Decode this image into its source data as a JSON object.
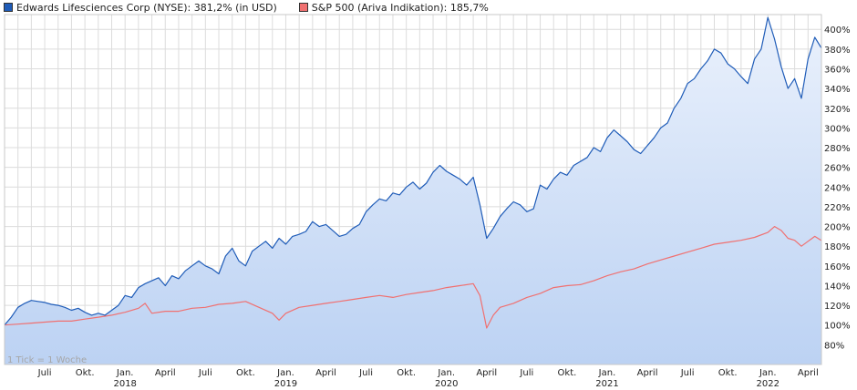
{
  "legend": {
    "series1": "Edwards Lifesciences Corp (NYSE): 381,2% (in USD)",
    "series2": "S&P 500 (Ariva Indikation): 185,7%"
  },
  "note": "1 Tick = 1 Woche",
  "colors": {
    "series1": "#1f5cb8",
    "series2": "#f07070",
    "fill_top": "#eaf1fc",
    "fill_bottom": "#bcd2f3",
    "grid": "#dcdcdc"
  },
  "chart_data": {
    "type": "line",
    "x_start": "2017-04",
    "x_end": "2022-04",
    "ylim": [
      60,
      415
    ],
    "yticks": [
      80,
      100,
      120,
      140,
      160,
      180,
      200,
      220,
      240,
      260,
      280,
      300,
      320,
      340,
      360,
      380,
      400
    ],
    "ytick_labels": [
      "80%",
      "100%",
      "120%",
      "140%",
      "160%",
      "180%",
      "200%",
      "220%",
      "240%",
      "260%",
      "280%",
      "300%",
      "320%",
      "340%",
      "360%",
      "380%",
      "400%"
    ],
    "xticks": [
      {
        "label": "Juli",
        "year": "",
        "month": 3
      },
      {
        "label": "Okt.",
        "year": "",
        "month": 6
      },
      {
        "label": "Jan.",
        "year": "2018",
        "month": 9
      },
      {
        "label": "April",
        "year": "",
        "month": 12
      },
      {
        "label": "Juli",
        "year": "",
        "month": 15
      },
      {
        "label": "Okt.",
        "year": "",
        "month": 18
      },
      {
        "label": "Jan.",
        "year": "2019",
        "month": 21
      },
      {
        "label": "April",
        "year": "",
        "month": 24
      },
      {
        "label": "Juli",
        "year": "",
        "month": 27
      },
      {
        "label": "Okt.",
        "year": "",
        "month": 30
      },
      {
        "label": "Jan.",
        "year": "2020",
        "month": 33
      },
      {
        "label": "April",
        "year": "",
        "month": 36
      },
      {
        "label": "Juli",
        "year": "",
        "month": 39
      },
      {
        "label": "Okt.",
        "year": "",
        "month": 42
      },
      {
        "label": "Jan.",
        "year": "2021",
        "month": 45
      },
      {
        "label": "April",
        "year": "",
        "month": 48
      },
      {
        "label": "Juli",
        "year": "",
        "month": 51
      },
      {
        "label": "Okt.",
        "year": "",
        "month": 54
      },
      {
        "label": "Jan.",
        "year": "2022",
        "month": 57
      },
      {
        "label": "April",
        "year": "",
        "month": 60
      }
    ],
    "series": [
      {
        "name": "Edwards Lifesciences Corp (NYSE): 381,2% (in USD)",
        "color": "#1f5cb8",
        "points": [
          [
            0,
            100
          ],
          [
            0.5,
            108
          ],
          [
            1,
            118
          ],
          [
            1.5,
            122
          ],
          [
            2,
            125
          ],
          [
            2.5,
            124
          ],
          [
            3,
            123
          ],
          [
            3.5,
            121
          ],
          [
            4,
            120
          ],
          [
            4.5,
            118
          ],
          [
            5,
            115
          ],
          [
            5.5,
            117
          ],
          [
            6,
            113
          ],
          [
            6.5,
            110
          ],
          [
            7,
            112
          ],
          [
            7.5,
            110
          ],
          [
            8,
            115
          ],
          [
            8.5,
            120
          ],
          [
            9,
            130
          ],
          [
            9.5,
            128
          ],
          [
            10,
            138
          ],
          [
            10.5,
            142
          ],
          [
            11,
            145
          ],
          [
            11.5,
            148
          ],
          [
            12,
            140
          ],
          [
            12.5,
            150
          ],
          [
            13,
            147
          ],
          [
            13.5,
            155
          ],
          [
            14,
            160
          ],
          [
            14.5,
            165
          ],
          [
            15,
            160
          ],
          [
            15.5,
            157
          ],
          [
            16,
            152
          ],
          [
            16.5,
            170
          ],
          [
            17,
            178
          ],
          [
            17.5,
            165
          ],
          [
            18,
            160
          ],
          [
            18.5,
            175
          ],
          [
            19,
            180
          ],
          [
            19.5,
            185
          ],
          [
            20,
            178
          ],
          [
            20.5,
            188
          ],
          [
            21,
            182
          ],
          [
            21.5,
            190
          ],
          [
            22,
            192
          ],
          [
            22.5,
            195
          ],
          [
            23,
            205
          ],
          [
            23.5,
            200
          ],
          [
            24,
            202
          ],
          [
            24.5,
            196
          ],
          [
            25,
            190
          ],
          [
            25.5,
            192
          ],
          [
            26,
            198
          ],
          [
            26.5,
            202
          ],
          [
            27,
            215
          ],
          [
            27.5,
            222
          ],
          [
            28,
            228
          ],
          [
            28.5,
            226
          ],
          [
            29,
            234
          ],
          [
            29.5,
            232
          ],
          [
            30,
            240
          ],
          [
            30.5,
            245
          ],
          [
            31,
            238
          ],
          [
            31.5,
            244
          ],
          [
            32,
            255
          ],
          [
            32.5,
            262
          ],
          [
            33,
            256
          ],
          [
            33.5,
            252
          ],
          [
            34,
            248
          ],
          [
            34.5,
            242
          ],
          [
            35,
            250
          ],
          [
            35.5,
            222
          ],
          [
            36,
            188
          ],
          [
            36.5,
            198
          ],
          [
            37,
            210
          ],
          [
            37.5,
            218
          ],
          [
            38,
            225
          ],
          [
            38.5,
            222
          ],
          [
            39,
            215
          ],
          [
            39.5,
            218
          ],
          [
            40,
            242
          ],
          [
            40.5,
            238
          ],
          [
            41,
            248
          ],
          [
            41.5,
            255
          ],
          [
            42,
            252
          ],
          [
            42.5,
            262
          ],
          [
            43,
            266
          ],
          [
            43.5,
            270
          ],
          [
            44,
            280
          ],
          [
            44.5,
            276
          ],
          [
            45,
            290
          ],
          [
            45.5,
            298
          ],
          [
            46,
            292
          ],
          [
            46.5,
            286
          ],
          [
            47,
            278
          ],
          [
            47.5,
            274
          ],
          [
            48,
            282
          ],
          [
            48.5,
            290
          ],
          [
            49,
            300
          ],
          [
            49.5,
            305
          ],
          [
            50,
            320
          ],
          [
            50.5,
            330
          ],
          [
            51,
            345
          ],
          [
            51.5,
            350
          ],
          [
            52,
            360
          ],
          [
            52.5,
            368
          ],
          [
            53,
            380
          ],
          [
            53.5,
            376
          ],
          [
            54,
            365
          ],
          [
            54.5,
            360
          ],
          [
            55,
            352
          ],
          [
            55.5,
            345
          ],
          [
            56,
            370
          ],
          [
            56.5,
            380
          ],
          [
            57,
            412
          ],
          [
            57.5,
            390
          ],
          [
            58,
            362
          ],
          [
            58.5,
            340
          ],
          [
            59,
            350
          ],
          [
            59.5,
            330
          ],
          [
            60,
            370
          ],
          [
            60.5,
            392
          ],
          [
            61,
            381
          ]
        ]
      },
      {
        "name": "S&P 500 (Ariva Indikation): 185,7%",
        "color": "#f07070",
        "points": [
          [
            0,
            100
          ],
          [
            1,
            101
          ],
          [
            2,
            102
          ],
          [
            3,
            103
          ],
          [
            4,
            104
          ],
          [
            5,
            104
          ],
          [
            6,
            106
          ],
          [
            7,
            108
          ],
          [
            8,
            110
          ],
          [
            9,
            113
          ],
          [
            10,
            117
          ],
          [
            10.5,
            122
          ],
          [
            11,
            112
          ],
          [
            12,
            114
          ],
          [
            13,
            114
          ],
          [
            14,
            117
          ],
          [
            15,
            118
          ],
          [
            16,
            121
          ],
          [
            17,
            122
          ],
          [
            18,
            124
          ],
          [
            19,
            118
          ],
          [
            20,
            112
          ],
          [
            20.5,
            105
          ],
          [
            21,
            112
          ],
          [
            22,
            118
          ],
          [
            23,
            120
          ],
          [
            24,
            122
          ],
          [
            25,
            124
          ],
          [
            26,
            126
          ],
          [
            27,
            128
          ],
          [
            28,
            130
          ],
          [
            29,
            128
          ],
          [
            30,
            131
          ],
          [
            31,
            133
          ],
          [
            32,
            135
          ],
          [
            33,
            138
          ],
          [
            34,
            140
          ],
          [
            35,
            142
          ],
          [
            35.5,
            130
          ],
          [
            36,
            97
          ],
          [
            36.5,
            110
          ],
          [
            37,
            118
          ],
          [
            38,
            122
          ],
          [
            39,
            128
          ],
          [
            40,
            132
          ],
          [
            41,
            138
          ],
          [
            42,
            140
          ],
          [
            43,
            141
          ],
          [
            44,
            145
          ],
          [
            45,
            150
          ],
          [
            46,
            154
          ],
          [
            47,
            157
          ],
          [
            48,
            162
          ],
          [
            49,
            166
          ],
          [
            50,
            170
          ],
          [
            51,
            174
          ],
          [
            52,
            178
          ],
          [
            53,
            182
          ],
          [
            54,
            184
          ],
          [
            55,
            186
          ],
          [
            56,
            189
          ],
          [
            57,
            194
          ],
          [
            57.5,
            200
          ],
          [
            58,
            196
          ],
          [
            58.5,
            188
          ],
          [
            59,
            186
          ],
          [
            59.5,
            180
          ],
          [
            60,
            185
          ],
          [
            60.5,
            190
          ],
          [
            61,
            185.7
          ]
        ]
      }
    ]
  }
}
